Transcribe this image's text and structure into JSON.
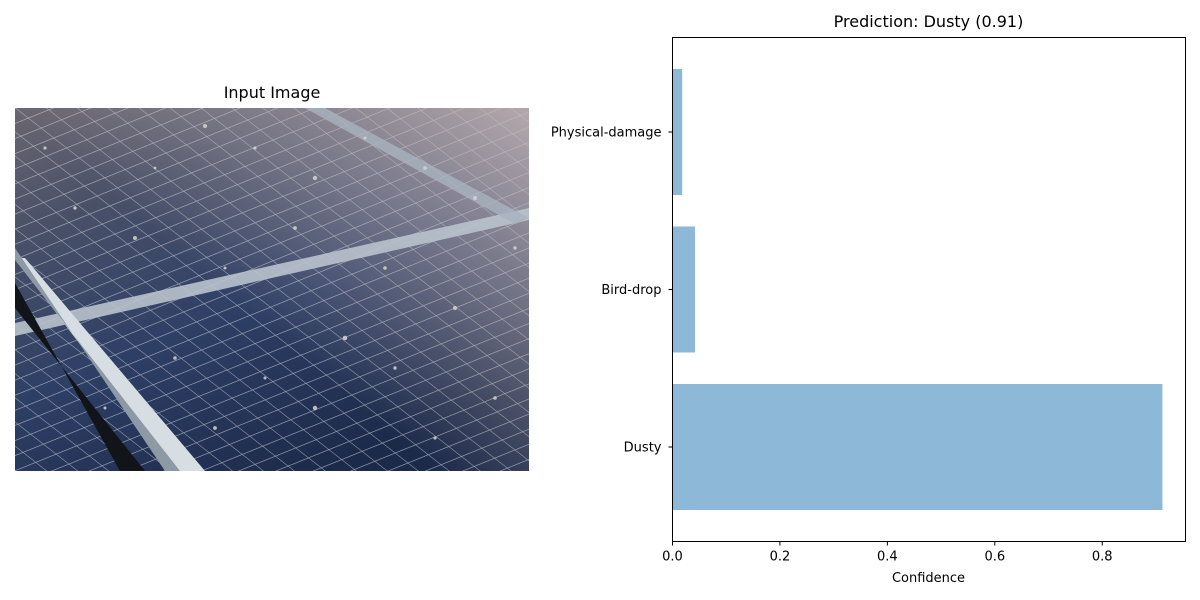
{
  "left_panel": {
    "title": "Input Image"
  },
  "chart_data": {
    "type": "bar",
    "orientation": "horizontal",
    "title": "Prediction: Dusty (0.91)",
    "xlabel": "Confidence",
    "ylabel": "",
    "categories": [
      "Dusty",
      "Bird-drop",
      "Physical-damage"
    ],
    "values": [
      0.912,
      0.042,
      0.018
    ],
    "xlim": [
      0,
      0.955
    ],
    "xticks": [
      0.0,
      0.2,
      0.4,
      0.6,
      0.8
    ],
    "xtick_labels": [
      "0.0",
      "0.2",
      "0.4",
      "0.6",
      "0.8"
    ],
    "bar_color": "#8db8d8",
    "grid": false,
    "legend": "none"
  }
}
